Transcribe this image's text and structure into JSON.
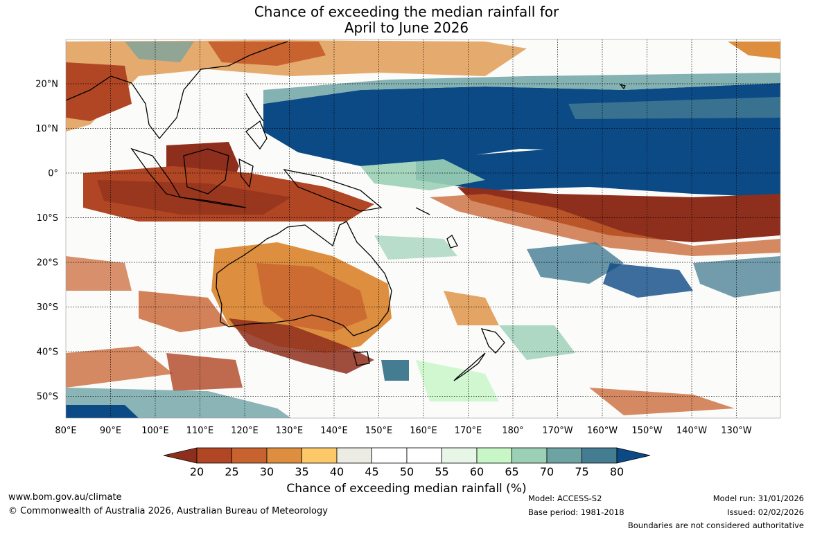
{
  "title_line1": "Chance of exceeding the median rainfall for",
  "title_line2": "April to June 2026",
  "lon_labels": [
    "80°E",
    "90°E",
    "100°E",
    "110°E",
    "120°E",
    "130°E",
    "140°E",
    "150°E",
    "160°E",
    "170°E",
    "180°",
    "170°W",
    "160°W",
    "150°W",
    "140°W",
    "130°W"
  ],
  "lat_labels": [
    "20°N",
    "10°N",
    "0°",
    "10°S",
    "20°S",
    "30°S",
    "40°S",
    "50°S"
  ],
  "colorbar": {
    "ticks": [
      "20",
      "25",
      "30",
      "35",
      "40",
      "45",
      "50",
      "55",
      "60",
      "65",
      "70",
      "75",
      "80"
    ],
    "colors": [
      "#8e2f1d",
      "#b04624",
      "#c8632f",
      "#dd8f3f",
      "#fdc868",
      "#ecebe4",
      "#ffffff",
      "#ffffff",
      "#e8f6e8",
      "#c7f6c7",
      "#9bd0b6",
      "#6ea3a4",
      "#447c92",
      "#0c4a86"
    ],
    "label": "Chance of exceeding median rainfall (%)"
  },
  "footer": {
    "url": "www.bom.gov.au/climate",
    "copyright": "© Commonwealth of Australia 2026, Australian Bureau of Meteorology",
    "model": "Model: ACCESS-S2",
    "base_period": "Base period: 1981-2018",
    "model_run": "Model run: 31/01/2026",
    "issued": "Issued: 02/02/2026",
    "disclaimer": "Boundaries are not considered authoritative"
  }
}
